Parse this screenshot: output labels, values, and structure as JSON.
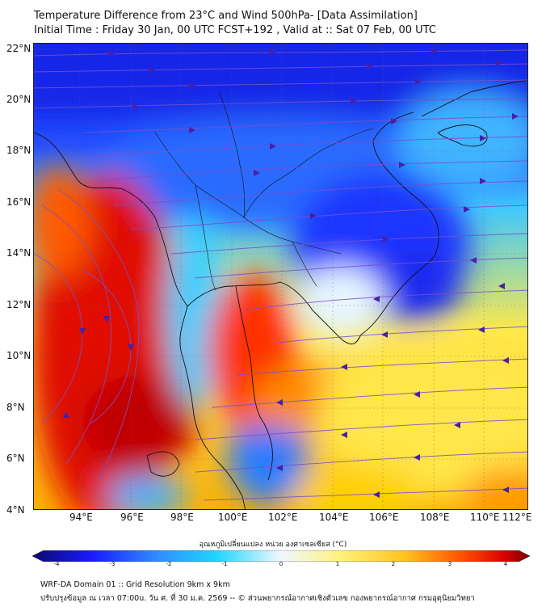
{
  "header": {
    "title_line1": "Temperature Difference from 23°C and Wind 500hPa- [Data Assimilation]",
    "title_line2": "Initial Time : Friday 30 Jan, 00 UTC FCST+192 , Valid at ::  Sat 07 Feb, 00 UTC"
  },
  "map": {
    "lat_labels": [
      "22°N",
      "20°N",
      "18°N",
      "16°N",
      "14°N",
      "12°N",
      "10°N",
      "8°N",
      "6°N",
      "4°N"
    ],
    "lon_labels": [
      "94°E",
      "96°E",
      "98°E",
      "100°E",
      "102°E",
      "104°E",
      "106°E",
      "108°E",
      "110°E",
      "112°E"
    ],
    "extent": {
      "lon_min": 93.0,
      "lon_max": 112.6,
      "lat_min": 4.0,
      "lat_max": 22.2
    },
    "layer": "Temperature difference shading with 500hPa wind streamlines",
    "gridlines": true
  },
  "colorbar": {
    "title": "อุณหภูมิเปลี่ยนแปลง หน่วย องศาเซลเซียส (°C)",
    "ticks": [
      "-4",
      "-3",
      "-2",
      "-1",
      "0",
      "1",
      "2",
      "3",
      "4"
    ],
    "range": [
      -4,
      4
    ],
    "colors": [
      "#0a0a6e",
      "#1a1aff",
      "#2f8cff",
      "#1fd6ff",
      "#f0f8ff",
      "#fff27a",
      "#ffc21c",
      "#ff4a00",
      "#d60000",
      "#7a0000"
    ]
  },
  "footer": {
    "line1": "WRF-DA Domain 01 :: Grid Resolution 9km x 9km",
    "line2": "ปรับปรุงข้อมูล ณ เวลา 07:00u. วัน ศ. ที่ 30 ม.ค. 2569 -- © ส่วนพยากรณ์อากาศเชิงตัวเลข กองพยากรณ์อากาศ กรมอุตุนิยมวิทยา"
  }
}
